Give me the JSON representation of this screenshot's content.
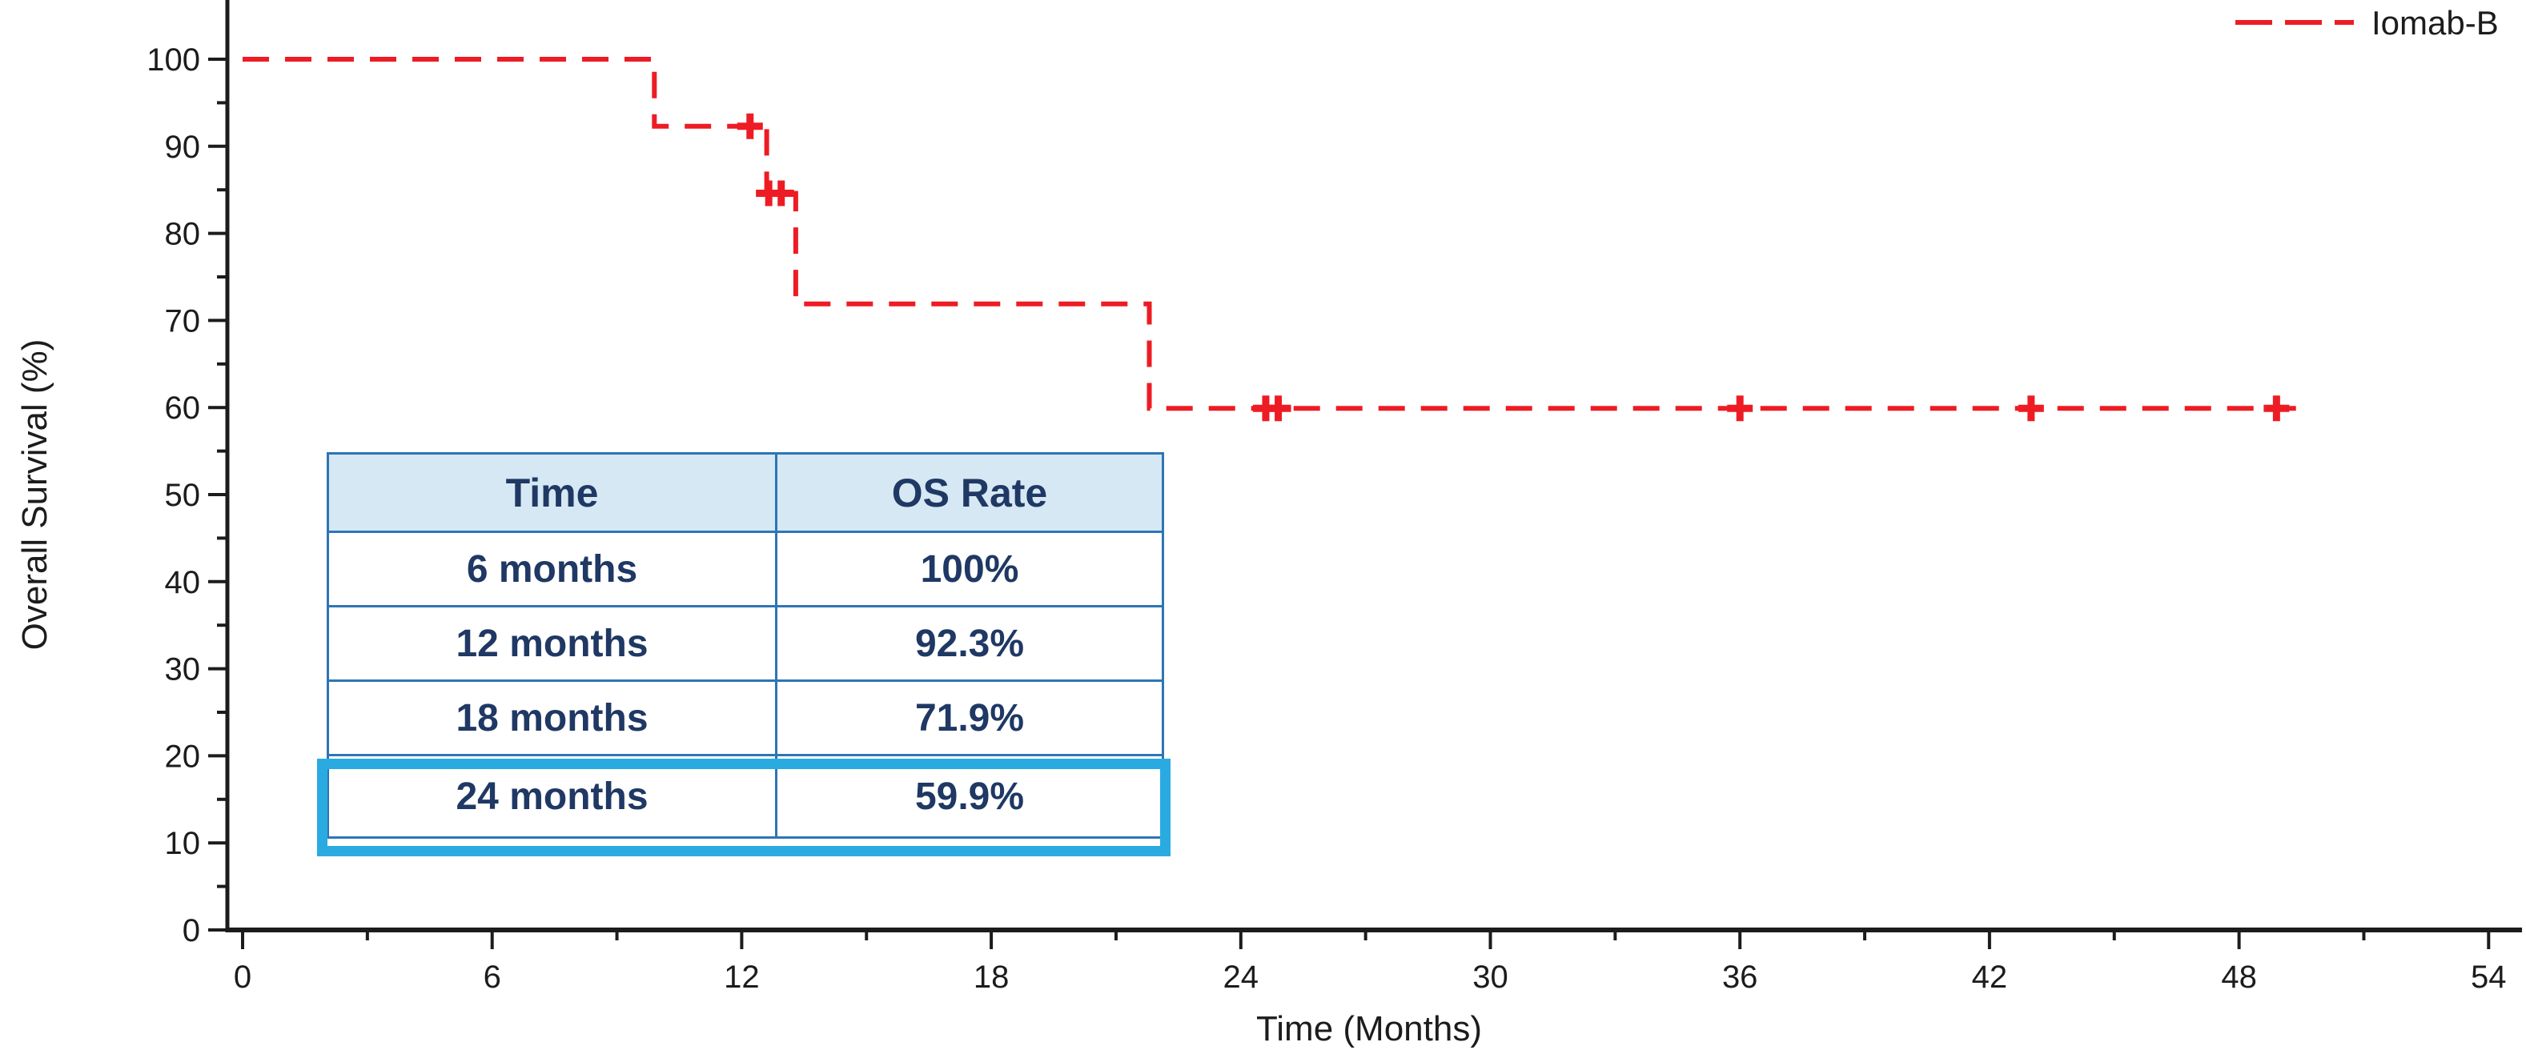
{
  "chart_data": {
    "type": "line",
    "subtype": "kaplan-meier-step",
    "title": "",
    "xlabel": "Time (Months)",
    "ylabel": "Overall Survival (%)",
    "xlim": [
      0,
      54
    ],
    "ylim": [
      0,
      100
    ],
    "x_major_ticks": [
      0,
      6,
      12,
      18,
      24,
      30,
      36,
      42,
      48,
      54
    ],
    "x_minor_ticks": [
      3,
      9,
      15,
      21,
      27,
      33,
      39,
      45,
      51
    ],
    "y_major_ticks": [
      0,
      10,
      20,
      30,
      40,
      50,
      60,
      70,
      80,
      90,
      100
    ],
    "y_minor_ticks": [
      5,
      15,
      25,
      35,
      45,
      55,
      65,
      75,
      85,
      95
    ],
    "grid": false,
    "legend_position": "top-right",
    "series": [
      {
        "name": "Iomab-B",
        "color": "#ed1c24",
        "line_style": "dashed",
        "step_points": [
          [
            0,
            100
          ],
          [
            9.9,
            100
          ],
          [
            9.9,
            92.3
          ],
          [
            12.6,
            92.3
          ],
          [
            12.6,
            84.6
          ],
          [
            13.3,
            84.6
          ],
          [
            13.3,
            71.9
          ],
          [
            21.8,
            71.9
          ],
          [
            21.8,
            59.9
          ],
          [
            49.4,
            59.9
          ]
        ],
        "censor_marks": [
          [
            12.2,
            92.3
          ],
          [
            12.65,
            84.6
          ],
          [
            12.95,
            84.6
          ],
          [
            24.6,
            59.9
          ],
          [
            24.9,
            59.9
          ],
          [
            36.0,
            59.9
          ],
          [
            43.0,
            59.9
          ],
          [
            48.9,
            59.9
          ]
        ]
      }
    ]
  },
  "inset_table": {
    "headers": [
      "Time",
      "OS Rate"
    ],
    "rows": [
      [
        "6 months",
        "100%"
      ],
      [
        "12 months",
        "92.3%"
      ],
      [
        "18 months",
        "71.9%"
      ],
      [
        "24 months",
        "59.9%"
      ]
    ],
    "highlighted_row_index": 3,
    "highlighted_row_label": "24 months"
  },
  "colors": {
    "series_red": "#ed1c24",
    "axis_black": "#1c1c1c",
    "table_border_blue": "#2e75b6",
    "table_header_bg": "#d6e8f3",
    "table_text_navy": "#1f3864",
    "highlight_cyan": "#29abe2",
    "background": "#ffffff"
  }
}
